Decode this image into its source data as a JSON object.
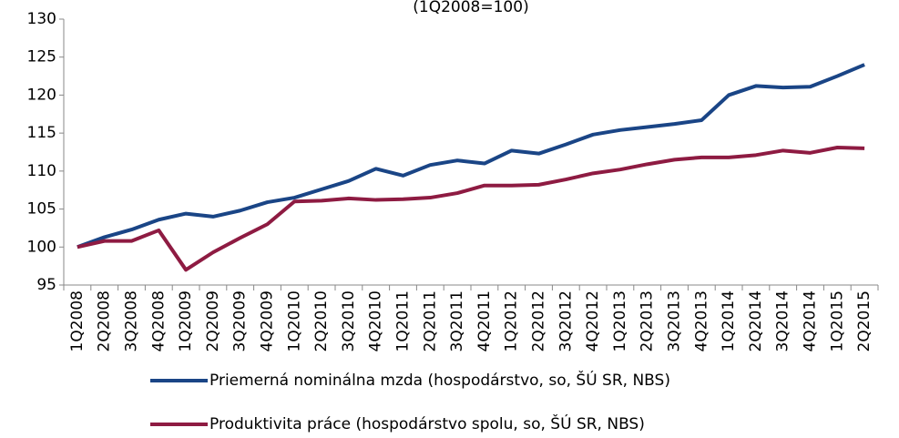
{
  "chart_data": {
    "type": "line",
    "title": "(1Q2008=100)",
    "categories": [
      "1Q2008",
      "2Q2008",
      "3Q2008",
      "4Q2008",
      "1Q2009",
      "2Q2009",
      "3Q2009",
      "4Q2009",
      "1Q2010",
      "2Q2010",
      "3Q2010",
      "4Q2010",
      "1Q2011",
      "2Q2011",
      "3Q2011",
      "4Q2011",
      "1Q2012",
      "2Q2012",
      "3Q2012",
      "4Q2012",
      "1Q2013",
      "2Q2013",
      "3Q2013",
      "4Q2013",
      "1Q2014",
      "2Q2014",
      "3Q2014",
      "4Q2014",
      "1Q2015",
      "2Q2015"
    ],
    "series": [
      {
        "name": "Priemerná nominálna mzda (hospodárstvo, so, ŠÚ SR, NBS)",
        "color": "#1a4586",
        "values": [
          100,
          101.3,
          102.3,
          103.6,
          104.4,
          104.0,
          104.8,
          105.9,
          106.5,
          107.6,
          108.7,
          110.3,
          109.4,
          110.8,
          111.4,
          111.0,
          112.7,
          112.3,
          113.5,
          114.8,
          115.4,
          115.8,
          116.2,
          116.7,
          120.0,
          121.2,
          121.0,
          121.1,
          122.5,
          124.0
        ]
      },
      {
        "name": "Produktivita práce (hospodárstvo spolu, so, ŠÚ SR, NBS)",
        "color": "#8e1b42",
        "values": [
          100,
          100.8,
          100.8,
          102.2,
          97.0,
          99.3,
          101.2,
          103.0,
          106.0,
          106.1,
          106.4,
          106.2,
          106.3,
          106.5,
          107.1,
          108.1,
          108.1,
          108.2,
          108.9,
          109.7,
          110.2,
          110.9,
          111.5,
          111.8,
          111.8,
          112.1,
          112.7,
          112.4,
          113.1,
          113.0
        ]
      }
    ],
    "ylim": [
      95,
      130
    ],
    "yticks": [
      95,
      100,
      105,
      110,
      115,
      120,
      125,
      130
    ],
    "grid": false
  }
}
